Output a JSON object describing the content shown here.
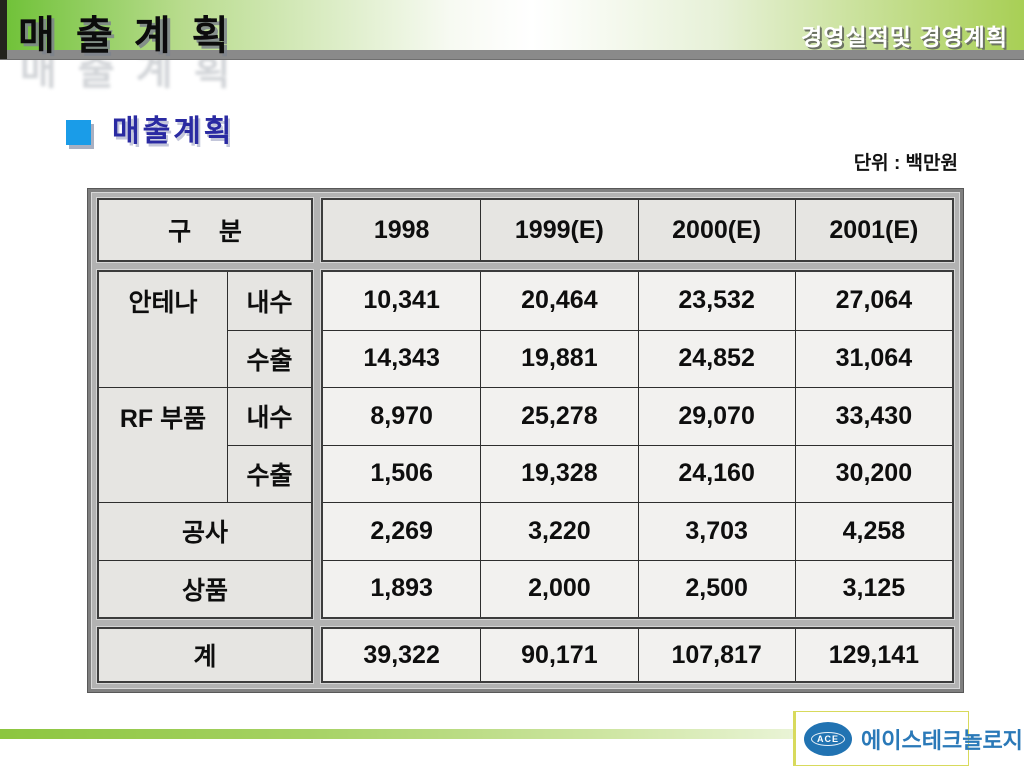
{
  "header": {
    "title": "매 출 계 획",
    "subtitle": "경영실적및 경영계획"
  },
  "section": {
    "title": "매출계획",
    "unit_label": "단위 : 백만원"
  },
  "table": {
    "col_headers": [
      "구    분",
      "1998",
      "1999(E)",
      "2000(E)",
      "2001(E)"
    ],
    "rows": [
      {
        "group": "안테나",
        "type": "내수",
        "values": [
          "10,341",
          "20,464",
          "23,532",
          "27,064"
        ]
      },
      {
        "group": "",
        "type": "수출",
        "values": [
          "14,343",
          "19,881",
          "24,852",
          "31,064"
        ]
      },
      {
        "group": "RF 부품",
        "type": "내수",
        "values": [
          "8,970",
          "25,278",
          "29,070",
          "33,430"
        ]
      },
      {
        "group": "",
        "type": "수출",
        "values": [
          "1,506",
          "19,328",
          "24,160",
          "30,200"
        ]
      },
      {
        "label": "공사",
        "values": [
          "2,269",
          "3,220",
          "3,703",
          "4,258"
        ]
      },
      {
        "label": "상품",
        "values": [
          "1,893",
          "2,000",
          "2,500",
          "3,125"
        ]
      }
    ],
    "total": {
      "label": "계",
      "values": [
        "39,322",
        "90,171",
        "107,817",
        "129,141"
      ]
    }
  },
  "footer": {
    "logo_badge": "ACE",
    "logo_text": "에이스테크놀로지"
  },
  "colors": {
    "header_green": "#6ec136",
    "bullet_blue": "#1a9ce8",
    "section_title_blue": "#2a2aa2",
    "label_cell_bg": "#e6e5e2",
    "data_cell_bg": "#f2f1ef",
    "logo_blue": "#2173b2",
    "footer_green": "#8cc63f"
  }
}
